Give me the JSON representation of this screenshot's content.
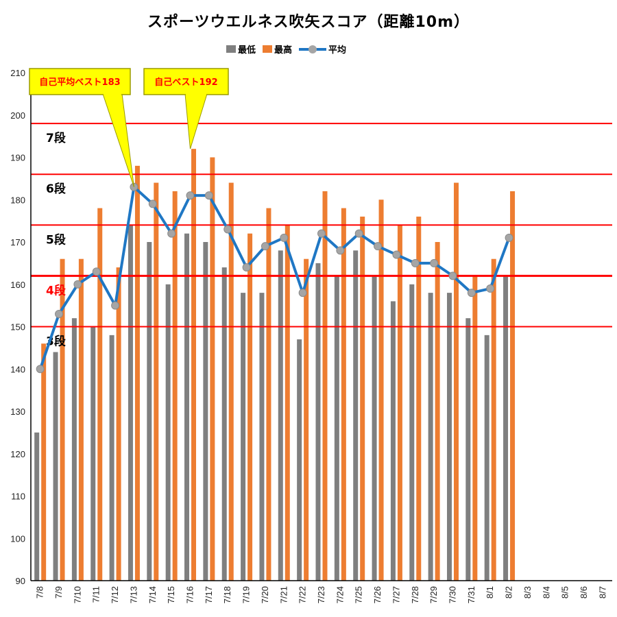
{
  "chart_data": {
    "type": "bar",
    "title": "スポーツウエルネス吹矢スコア（距離10m）",
    "xlabel": "",
    "ylabel": "",
    "ylim": [
      90,
      210
    ],
    "yticks": [
      90,
      100,
      110,
      120,
      130,
      140,
      150,
      160,
      170,
      180,
      190,
      200,
      210
    ],
    "grid": false,
    "legend_position": "top",
    "categories": [
      "7/8",
      "7/9",
      "7/10",
      "7/11",
      "7/12",
      "7/13",
      "7/14",
      "7/15",
      "7/16",
      "7/17",
      "7/18",
      "7/19",
      "7/20",
      "7/21",
      "7/22",
      "7/23",
      "7/24",
      "7/25",
      "7/26",
      "7/27",
      "7/28",
      "7/29",
      "7/30",
      "7/31",
      "8/1",
      "8/2",
      "8/3",
      "8/4",
      "8/5",
      "8/6",
      "8/7"
    ],
    "series": [
      {
        "name": "最低",
        "type": "bar",
        "color": "#7f7f7f",
        "values": [
          125,
          144,
          152,
          150,
          148,
          174,
          170,
          160,
          172,
          170,
          164,
          158,
          158,
          168,
          147,
          165,
          162,
          168,
          162,
          156,
          160,
          158,
          158,
          152,
          148,
          162,
          null,
          null,
          null,
          null,
          null
        ]
      },
      {
        "name": "最高",
        "type": "bar",
        "color": "#ed7d31",
        "values": [
          146,
          166,
          166,
          178,
          164,
          188,
          184,
          182,
          192,
          190,
          184,
          172,
          178,
          174,
          166,
          182,
          178,
          176,
          180,
          174,
          176,
          170,
          184,
          162,
          166,
          182,
          null,
          null,
          null,
          null,
          null
        ]
      },
      {
        "name": "平均",
        "type": "line",
        "color": "#1f77c4",
        "marker_color": "#a5a5a5",
        "values": [
          140,
          153,
          160,
          163,
          155,
          183,
          179,
          172,
          181,
          181,
          173,
          164,
          169,
          171,
          158,
          172,
          168,
          172,
          169,
          167,
          165,
          165,
          162,
          158,
          159,
          171,
          null,
          null,
          null,
          null,
          null
        ]
      }
    ],
    "reference_lines": [
      {
        "value": 198,
        "label": "7段",
        "label_color": "#000000",
        "color": "#ff0000"
      },
      {
        "value": 186,
        "label": "6段",
        "label_color": "#000000",
        "color": "#ff0000"
      },
      {
        "value": 174,
        "label": "5段",
        "label_color": "#000000",
        "color": "#ff0000"
      },
      {
        "value": 162,
        "label": "4段",
        "label_color": "#ff0000",
        "color": "#ff0000"
      },
      {
        "value": 150,
        "label": "3段",
        "label_color": "#000000",
        "color": "#ff0000"
      }
    ],
    "annotations": [
      {
        "text": "自己平均ベスト183",
        "category": "7/13",
        "value": 183
      },
      {
        "text": "自己ベスト192",
        "category": "7/16",
        "value": 192
      }
    ]
  }
}
